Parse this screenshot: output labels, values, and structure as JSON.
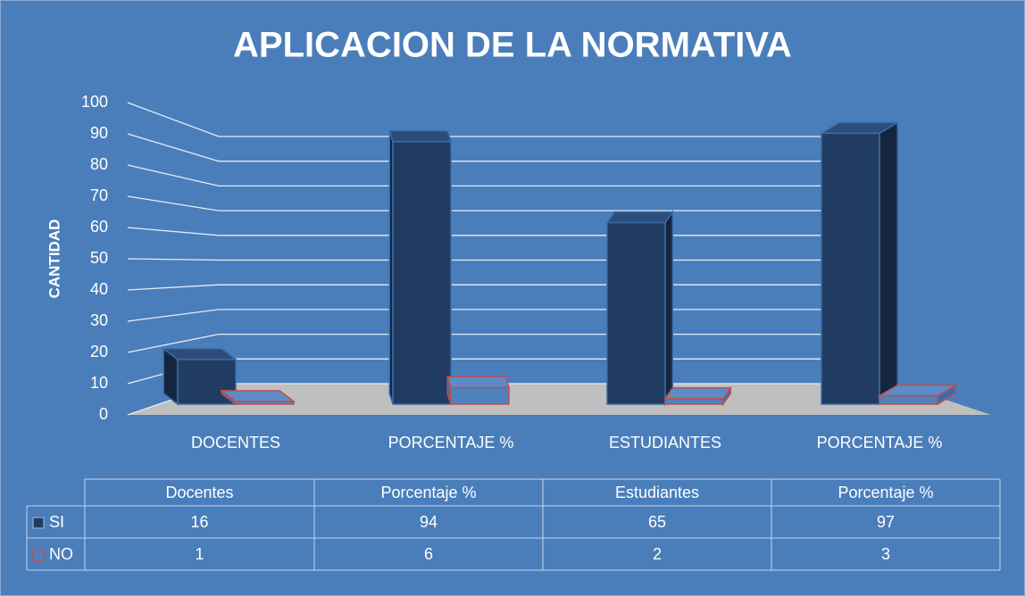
{
  "chart_data": {
    "type": "bar3d",
    "title": "APLICACION DE LA NORMATIVA",
    "y_label": "CANTIDAD",
    "categories": [
      "DOCENTES",
      "PORCENTAJE %",
      "ESTUDIANTES",
      "PORCENTAJE %"
    ],
    "table_header": [
      "Docentes",
      "Porcentaje %",
      "Estudiantes",
      "Porcentaje %"
    ],
    "series": [
      {
        "name": "SI",
        "color": "#213c63",
        "values": [
          16,
          94,
          65,
          97
        ]
      },
      {
        "name": "NO",
        "color": "#c0504d",
        "values": [
          1,
          6,
          2,
          3
        ]
      }
    ],
    "ylim": [
      0,
      100
    ],
    "yticks": [
      0,
      10,
      20,
      30,
      40,
      50,
      60,
      70,
      80,
      90,
      100
    ],
    "grid": true
  }
}
